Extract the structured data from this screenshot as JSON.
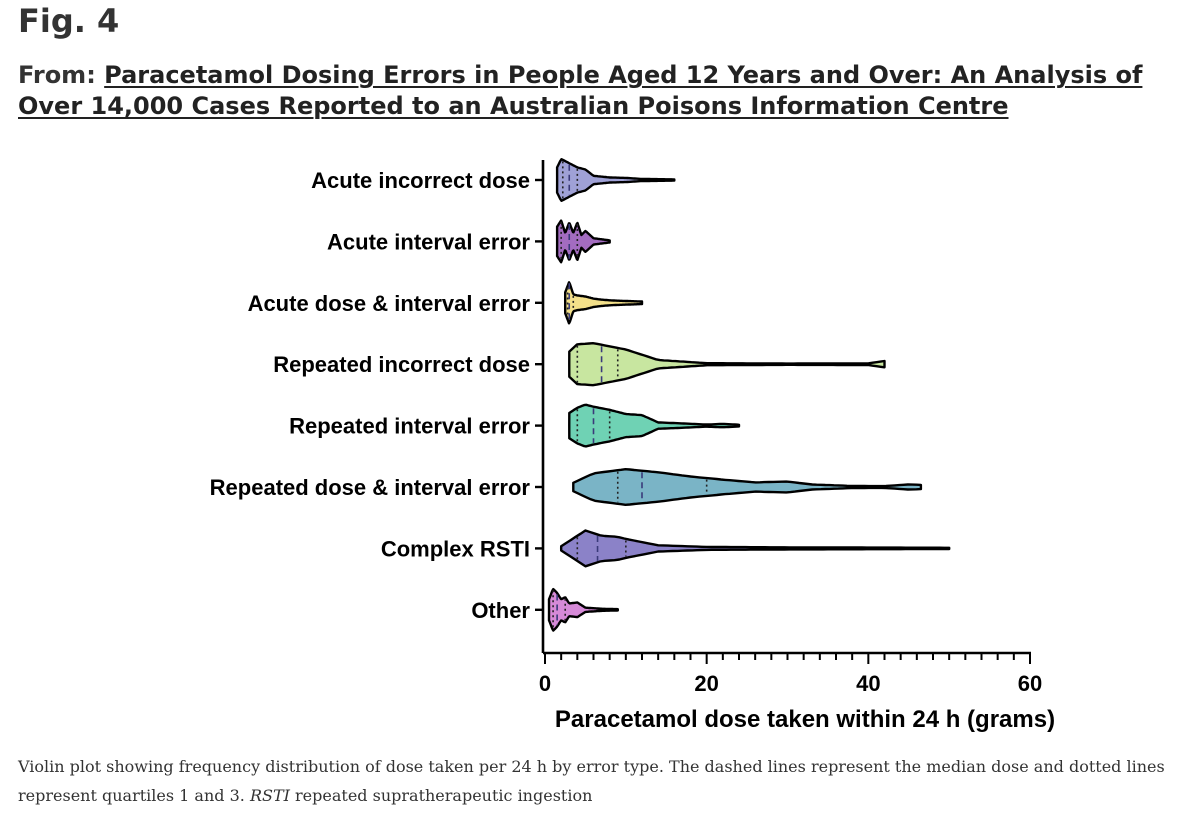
{
  "figure": {
    "label": "Fig. 4",
    "from_prefix": "From:",
    "article_title": "Paracetamol Dosing Errors in People Aged 12 Years and Over: An Analysis of Over 14,000 Cases Reported to an Australian Poisons Information Centre"
  },
  "caption": {
    "text_part1": "Violin plot showing frequency distribution of dose taken per 24 h by error type. The dashed lines represent the median dose and dotted lines represent quartiles 1 and 3. ",
    "abbr": "RSTI",
    "text_part2": " repeated supratherapeutic ingestion"
  },
  "chart_data": {
    "type": "violin",
    "title": "",
    "xlabel": "Paracetamol dose taken within 24 h (grams)",
    "ylabel": "",
    "xlim": [
      0,
      60
    ],
    "x_ticks": [
      0,
      20,
      40,
      60
    ],
    "x_minor_step": 2,
    "grid": false,
    "series": [
      {
        "name": "Acute incorrect dose",
        "color": "#9fa1d6",
        "min": 1.5,
        "q1": 2.2,
        "median": 3.0,
        "q3": 4.0,
        "max": 16,
        "density": [
          [
            1.5,
            0.6
          ],
          [
            2,
            1.0
          ],
          [
            3,
            0.8
          ],
          [
            4,
            0.6
          ],
          [
            5,
            0.5
          ],
          [
            6,
            0.2
          ],
          [
            8,
            0.12
          ],
          [
            10,
            0.1
          ],
          [
            12,
            0.05
          ],
          [
            16,
            0.03
          ]
        ]
      },
      {
        "name": "Acute interval error",
        "color": "#a36cc0",
        "min": 1.5,
        "q1": 2.0,
        "median": 3.0,
        "q3": 4.0,
        "max": 8,
        "density": [
          [
            1.5,
            0.7
          ],
          [
            2,
            1.0
          ],
          [
            2.5,
            0.4
          ],
          [
            3,
            0.9
          ],
          [
            3.5,
            0.4
          ],
          [
            4,
            0.9
          ],
          [
            4.5,
            0.3
          ],
          [
            5,
            0.5
          ],
          [
            6,
            0.15
          ],
          [
            8,
            0.05
          ]
        ]
      },
      {
        "name": "Acute dose & interval error",
        "color": "#f3e08a",
        "min": 2.5,
        "q1": 2.8,
        "median": 3.0,
        "q3": 3.5,
        "max": 12,
        "density": [
          [
            2.5,
            0.5
          ],
          [
            3,
            1.0
          ],
          [
            3.5,
            0.4
          ],
          [
            4,
            0.35
          ],
          [
            5,
            0.3
          ],
          [
            6,
            0.2
          ],
          [
            7,
            0.15
          ],
          [
            8,
            0.12
          ],
          [
            9,
            0.1
          ],
          [
            12,
            0.06
          ]
        ]
      },
      {
        "name": "Repeated incorrect dose",
        "color": "#c8e6a0",
        "min": 3,
        "q1": 4.0,
        "median": 7.0,
        "q3": 9.0,
        "max": 42,
        "density": [
          [
            3,
            0.6
          ],
          [
            4,
            0.95
          ],
          [
            6,
            1.0
          ],
          [
            8,
            0.85
          ],
          [
            10,
            0.7
          ],
          [
            12,
            0.45
          ],
          [
            14,
            0.2
          ],
          [
            16,
            0.15
          ],
          [
            20,
            0.05
          ],
          [
            30,
            0.03
          ],
          [
            40,
            0.04
          ],
          [
            42,
            0.15
          ]
        ]
      },
      {
        "name": "Repeated interval error",
        "color": "#6fd2b4",
        "min": 3,
        "q1": 4.0,
        "median": 6.0,
        "q3": 8.0,
        "max": 24,
        "density": [
          [
            3,
            0.6
          ],
          [
            4,
            0.85
          ],
          [
            5,
            1.0
          ],
          [
            6,
            0.9
          ],
          [
            8,
            0.75
          ],
          [
            10,
            0.55
          ],
          [
            12,
            0.5
          ],
          [
            14,
            0.15
          ],
          [
            16,
            0.12
          ],
          [
            20,
            0.05
          ],
          [
            22,
            0.08
          ],
          [
            24,
            0.04
          ]
        ]
      },
      {
        "name": "Repeated dose & interval error",
        "color": "#7ab4c6",
        "min": 3.5,
        "q1": 9.0,
        "median": 12.0,
        "q3": 20.0,
        "max": 46.5,
        "density": [
          [
            3.5,
            0.2
          ],
          [
            6,
            0.65
          ],
          [
            10,
            0.85
          ],
          [
            14,
            0.7
          ],
          [
            18,
            0.5
          ],
          [
            22,
            0.35
          ],
          [
            26,
            0.22
          ],
          [
            30,
            0.26
          ],
          [
            33,
            0.12
          ],
          [
            38,
            0.05
          ],
          [
            42,
            0.04
          ],
          [
            45,
            0.12
          ],
          [
            46.5,
            0.1
          ]
        ]
      },
      {
        "name": "Complex RSTI",
        "color": "#8b82c8",
        "min": 2,
        "q1": 4.0,
        "median": 6.5,
        "q3": 10.0,
        "max": 50,
        "density": [
          [
            2,
            0.1
          ],
          [
            4,
            0.6
          ],
          [
            5,
            0.85
          ],
          [
            7,
            0.6
          ],
          [
            9,
            0.55
          ],
          [
            10,
            0.45
          ],
          [
            12,
            0.3
          ],
          [
            14,
            0.15
          ],
          [
            20,
            0.07
          ],
          [
            30,
            0.05
          ],
          [
            40,
            0.04
          ],
          [
            50,
            0.03
          ]
        ]
      },
      {
        "name": "Other",
        "color": "#d68ad8",
        "min": 0.5,
        "q1": 1.0,
        "median": 1.5,
        "q3": 2.5,
        "max": 9,
        "density": [
          [
            0.5,
            0.5
          ],
          [
            1,
            1.0
          ],
          [
            1.5,
            0.8
          ],
          [
            2,
            0.5
          ],
          [
            2.5,
            0.6
          ],
          [
            3,
            0.3
          ],
          [
            4,
            0.35
          ],
          [
            5,
            0.1
          ],
          [
            7,
            0.05
          ],
          [
            9,
            0.03
          ]
        ]
      }
    ]
  }
}
